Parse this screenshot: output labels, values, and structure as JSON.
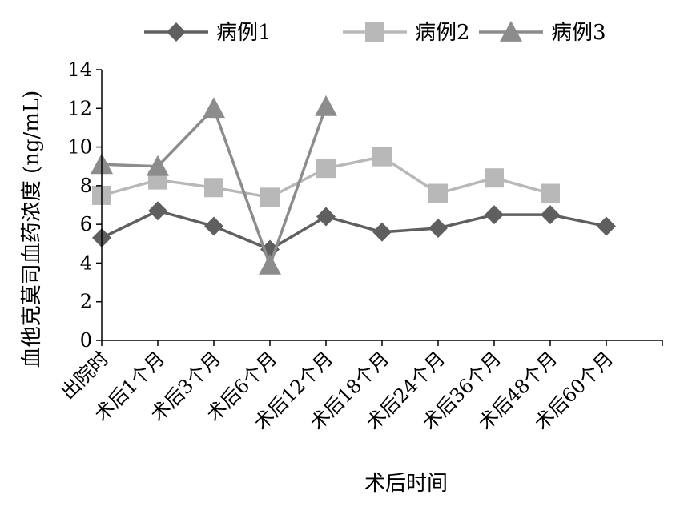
{
  "chart_data": {
    "type": "line",
    "categories": [
      "出院时",
      "术后1个月",
      "术后3个月",
      "术后6个月",
      "术后12个月",
      "术后18个月",
      "术后24个月",
      "术后36个月",
      "术后48个月",
      "术后60个月"
    ],
    "series": [
      {
        "name": "病例1",
        "marker": "diamond",
        "color": "#5f5f5f",
        "values": [
          5.3,
          6.7,
          5.9,
          4.7,
          6.4,
          5.6,
          5.8,
          6.5,
          6.5,
          5.9
        ]
      },
      {
        "name": "病例2",
        "marker": "square",
        "color": "#b8b8b8",
        "values": [
          7.5,
          8.3,
          7.9,
          7.4,
          8.9,
          9.5,
          7.6,
          8.4,
          7.6,
          null
        ]
      },
      {
        "name": "病例3",
        "marker": "triangle",
        "color": "#8c8c8c",
        "values": [
          9.1,
          9.0,
          12.0,
          3.9,
          12.1,
          null,
          null,
          null,
          null,
          null
        ]
      }
    ],
    "xlabel": "术后时间",
    "ylabel": "血他克莫司血药浓度 (ng/mL)",
    "ylim": [
      0,
      14
    ],
    "yticks": [
      0,
      2,
      4,
      6,
      8,
      10,
      12,
      14
    ],
    "legend_position": "top",
    "grid": false
  }
}
